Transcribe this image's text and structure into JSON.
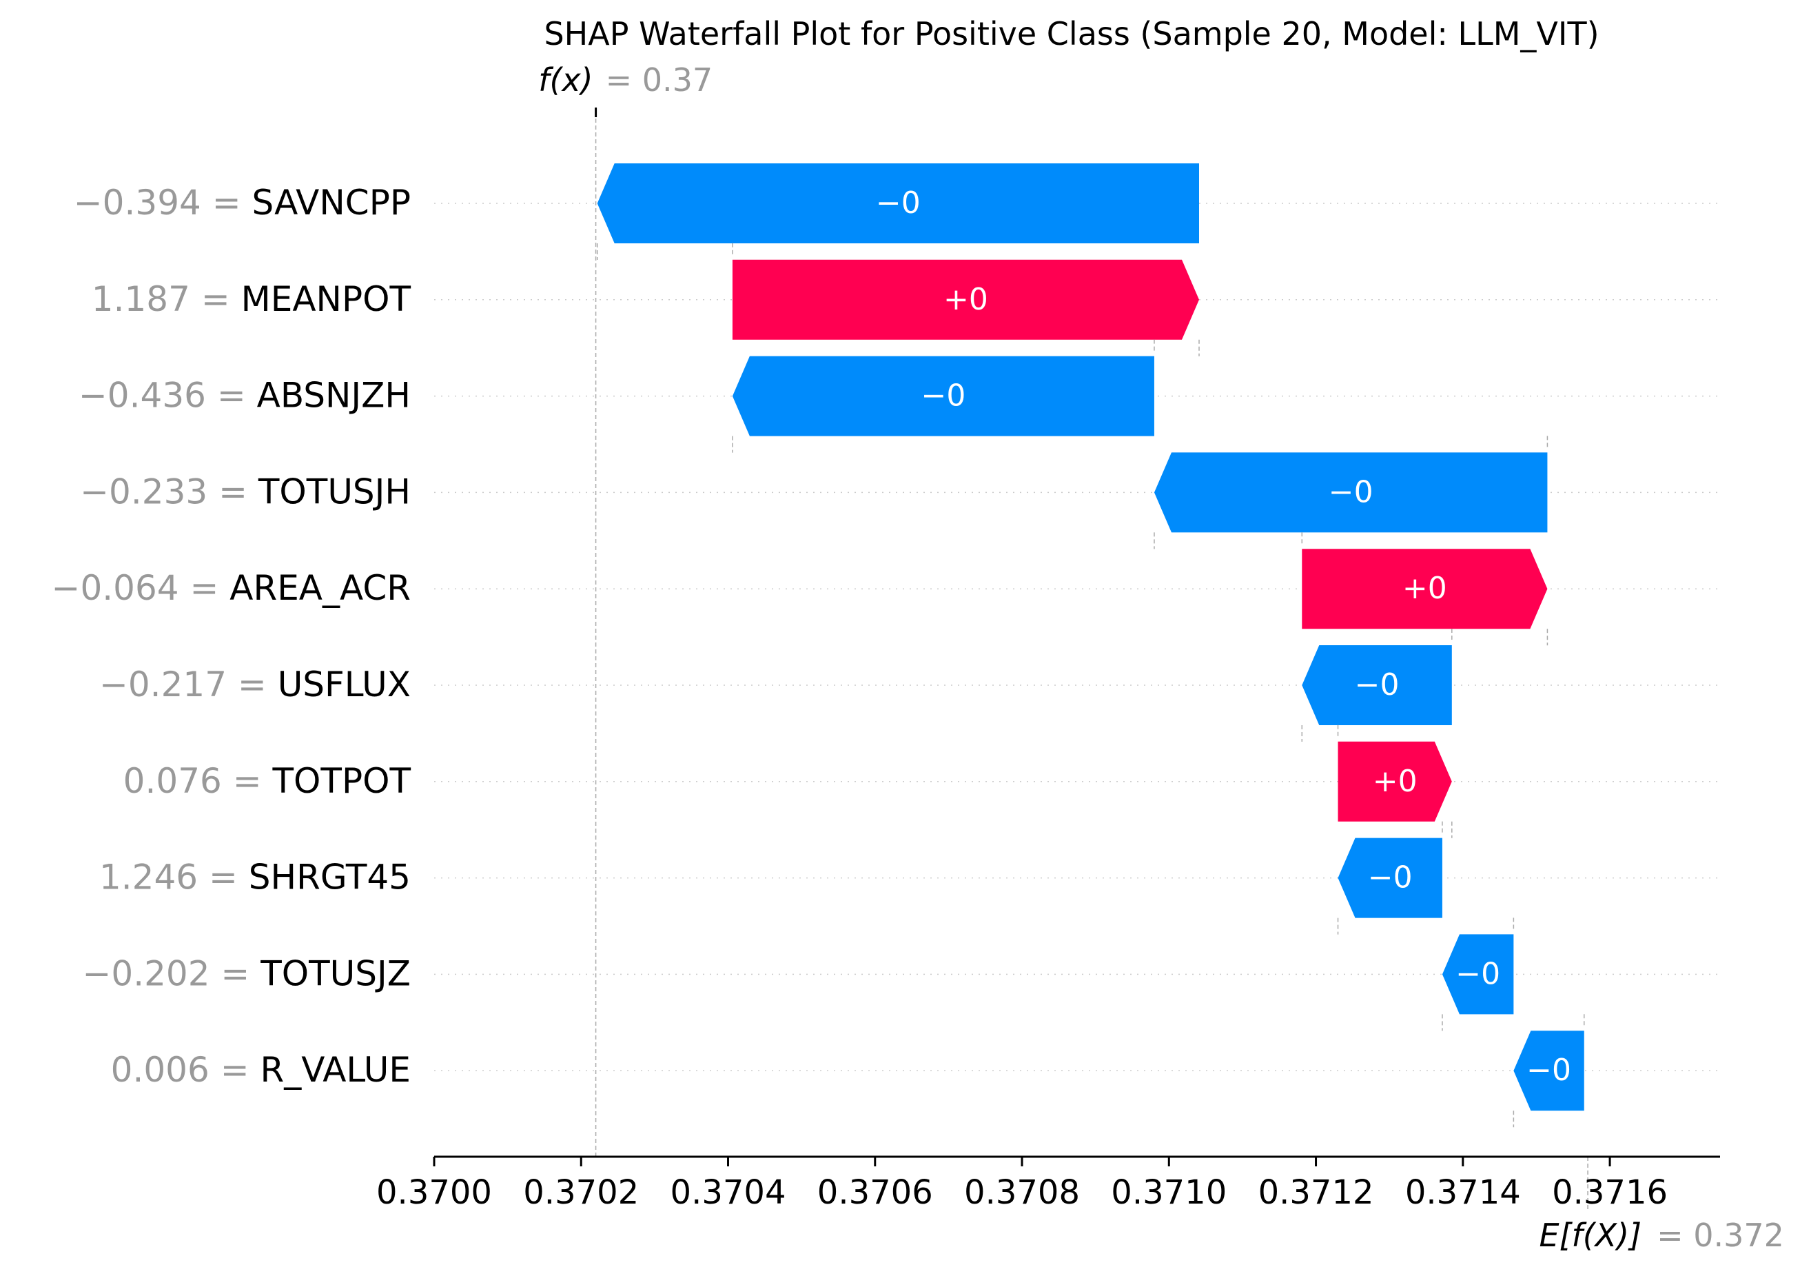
{
  "chart_data": {
    "type": "waterfall",
    "title": "SHAP Waterfall Plot for Positive Class (Sample 20, Model: LLM_VIT)",
    "fx_label": "f(x)",
    "fx_value_text": "= 0.37",
    "fx_value": 0.37022,
    "base_label": "E[f(X)]",
    "base_value_text": "= 0.372",
    "base_value": 0.37157,
    "xlim": [
      0.37,
      0.37175
    ],
    "x_ticks": [
      "0.3700",
      "0.3702",
      "0.3704",
      "0.3706",
      "0.3708",
      "0.3710",
      "0.3712",
      "0.3714",
      "0.3716"
    ],
    "x_tick_values": [
      0.37,
      0.3702,
      0.3704,
      0.3706,
      0.3708,
      0.371,
      0.3712,
      0.3714,
      0.3716
    ],
    "colors": {
      "positive": "#ff0051",
      "negative": "#008bfb",
      "value_grey": "#999999"
    },
    "features": [
      {
        "value": "−0.394 =",
        "name": "SAVNCPP",
        "start": 0.371041,
        "end": 0.370222,
        "label": "−0"
      },
      {
        "value": "1.187 =",
        "name": "MEANPOT",
        "start": 0.370406,
        "end": 0.371041,
        "label": "+0"
      },
      {
        "value": "−0.436 =",
        "name": "ABSNJZH",
        "start": 0.37098,
        "end": 0.370406,
        "label": "−0"
      },
      {
        "value": "−0.233 =",
        "name": "TOTUSJH",
        "start": 0.371515,
        "end": 0.37098,
        "label": "−0"
      },
      {
        "value": "−0.064 =",
        "name": "AREA_ACR",
        "start": 0.371181,
        "end": 0.371515,
        "label": "+0"
      },
      {
        "value": "−0.217 =",
        "name": "USFLUX",
        "start": 0.371385,
        "end": 0.371181,
        "label": "−0"
      },
      {
        "value": "0.076 =",
        "name": "TOTPOT",
        "start": 0.37123,
        "end": 0.371385,
        "label": "+0"
      },
      {
        "value": "1.246 =",
        "name": "SHRGT45",
        "start": 0.371372,
        "end": 0.37123,
        "label": "−0"
      },
      {
        "value": "−0.202 =",
        "name": "TOTUSJZ",
        "start": 0.371469,
        "end": 0.371372,
        "label": "−0"
      },
      {
        "value": "0.006 =",
        "name": "R_VALUE",
        "start": 0.371565,
        "end": 0.371469,
        "label": "−0"
      }
    ]
  }
}
